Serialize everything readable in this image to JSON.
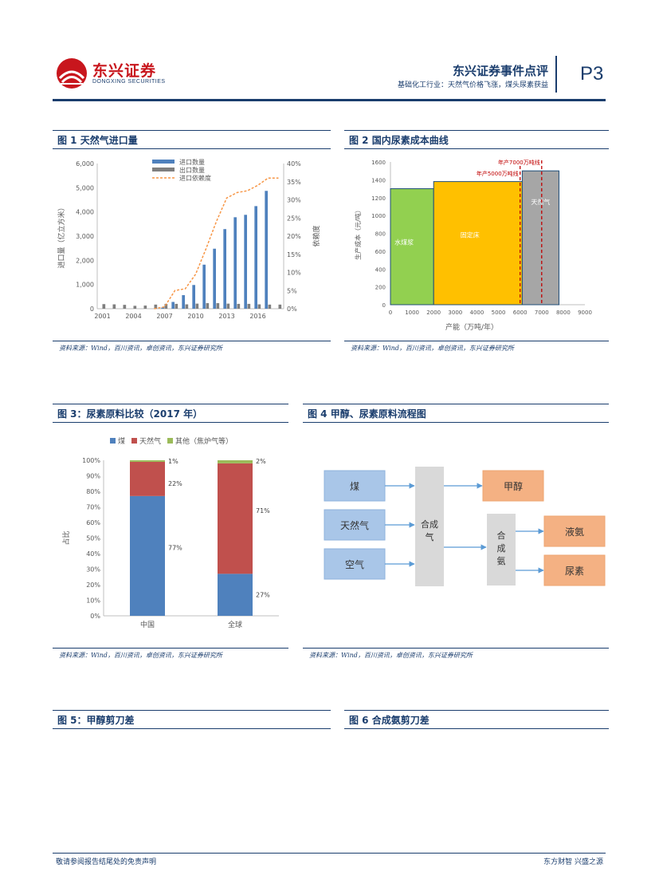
{
  "header": {
    "logo_cn": "东兴证券",
    "logo_en": "DONGXING SECURITIES",
    "report_name": "东兴证券事件点评",
    "report_sub": "基础化工行业：天然气价格飞涨，煤头尿素获益",
    "page": "P3"
  },
  "figures": {
    "fig1": {
      "title": "图 1 天然气进口量",
      "source": "资料来源：Wind，百川资讯，卓创资讯，东兴证券研究所"
    },
    "fig2": {
      "title": "图 2 国内尿素成本曲线",
      "source": "资料来源：Wind，百川资讯，卓创资讯，东兴证券研究所"
    },
    "fig3": {
      "title": "图 3：尿素原料比较（2017 年）",
      "source": "资料来源：Wind，百川资讯，卓创资讯，东兴证券研究所"
    },
    "fig4": {
      "title": "图 4 甲醇、尿素原料流程图",
      "source": "资料来源：Wind，百川资讯，卓创资讯，东兴证券研究所"
    },
    "fig5": {
      "title": "图 5：甲醇剪刀差"
    },
    "fig6": {
      "title": "图 6 合成氨剪刀差"
    }
  },
  "chart_data": [
    {
      "id": "fig1",
      "type": "bar",
      "x": [
        "2001",
        "2002",
        "2003",
        "2004",
        "2005",
        "2006",
        "2007",
        "2008",
        "2009",
        "2010",
        "2011",
        "2012",
        "2013",
        "2014",
        "2015",
        "2016",
        "2017",
        "2018"
      ],
      "xticks": [
        "2001",
        "2004",
        "2007",
        "2010",
        "2013",
        "2016"
      ],
      "series": [
        {
          "name": "进口数量",
          "type": "bar",
          "axis": "left",
          "color": "#4f81bd",
          "values": [
            0,
            0,
            0,
            0,
            0,
            0,
            50,
            280,
            560,
            980,
            1820,
            2480,
            3290,
            3780,
            3880,
            4240,
            4870,
            0
          ]
        },
        {
          "name": "出口数量",
          "type": "bar",
          "axis": "left",
          "color": "#7f7f7f",
          "values": [
            190,
            180,
            160,
            120,
            130,
            170,
            200,
            200,
            180,
            210,
            230,
            230,
            210,
            200,
            200,
            180,
            170,
            170
          ]
        },
        {
          "name": "进口依赖度",
          "type": "line",
          "axis": "right",
          "color": "#f79646",
          "values": [
            null,
            null,
            null,
            null,
            null,
            0.0,
            0.5,
            5.0,
            5.5,
            9.5,
            16.5,
            24.0,
            30.5,
            32.0,
            32.5,
            34.0,
            36.0,
            36.0
          ]
        }
      ],
      "ylabel_left": "进口量（亿立方米）",
      "ylabel_right": "依赖度",
      "ylim_left": [
        0,
        6000
      ],
      "yticks_left": [
        "0",
        "1,000",
        "2,000",
        "3,000",
        "4,000",
        "5,000",
        "6,000"
      ],
      "ylim_right": [
        0,
        40
      ],
      "yticks_right": [
        "0%",
        "5%",
        "10%",
        "15%",
        "20%",
        "25%",
        "30%",
        "35%",
        "40%"
      ],
      "legend": "top-center"
    },
    {
      "id": "fig2",
      "type": "bar",
      "segments": [
        {
          "label": "水煤浆",
          "x0": 0,
          "x1": 2000,
          "value": 1300,
          "color": "#92d050"
        },
        {
          "label": "固定床",
          "x0": 2000,
          "x1": 6100,
          "value": 1380,
          "color": "#ffc000"
        },
        {
          "label": "天然气",
          "x0": 6100,
          "x1": 7800,
          "value": 1500,
          "color": "#a6a6a6"
        }
      ],
      "annotations": [
        {
          "label": "年产5000万吨线",
          "x": 6000
        },
        {
          "label": "年产7000万吨线",
          "x": 7000
        }
      ],
      "xlabel": "产能（万吨/年）",
      "ylabel": "生产成本（元/吨）",
      "xlim": [
        0,
        9000
      ],
      "xticks": [
        "0",
        "1000",
        "2000",
        "3000",
        "4000",
        "5000",
        "6000",
        "7000",
        "8000",
        "9000"
      ],
      "ylim": [
        0,
        1600
      ],
      "yticks": [
        "0",
        "200",
        "400",
        "600",
        "800",
        "1000",
        "1200",
        "1400",
        "1600"
      ]
    },
    {
      "id": "fig3",
      "type": "bar",
      "stacked": true,
      "categories": [
        "中国",
        "全球"
      ],
      "series": [
        {
          "name": "煤",
          "color": "#4f81bd",
          "values": [
            77,
            27
          ],
          "labels": [
            "77%",
            "27%"
          ]
        },
        {
          "name": "天然气",
          "color": "#c0504d",
          "values": [
            22,
            71
          ],
          "labels": [
            "22%",
            "71%"
          ]
        },
        {
          "name": "其他（焦炉气等）",
          "color": "#9bbb59",
          "values": [
            1,
            2
          ],
          "labels": [
            "1%",
            "2%"
          ]
        }
      ],
      "ylabel": "占比",
      "ylim": [
        0,
        100
      ],
      "yticks": [
        "0%",
        "10%",
        "20%",
        "30%",
        "40%",
        "50%",
        "60%",
        "70%",
        "80%",
        "90%",
        "100%"
      ],
      "legend": "top"
    }
  ],
  "flow": {
    "inputs": [
      "煤",
      "天然气",
      "空气"
    ],
    "syngas": "合成气",
    "methanol": "甲醇",
    "ammonia": "合成氨",
    "outputs": [
      "液氨",
      "尿素"
    ]
  },
  "footer": {
    "left": "敬请参阅报告结尾处的免责声明",
    "right": "东方财智 兴盛之源"
  }
}
